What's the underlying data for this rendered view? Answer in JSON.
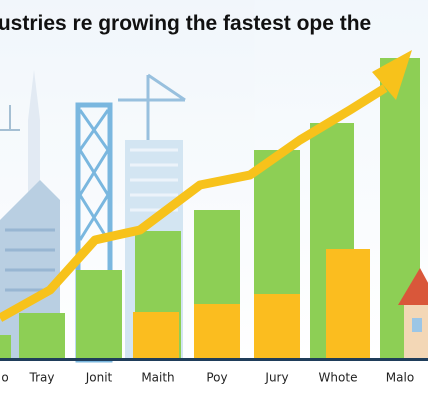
{
  "chart_data": {
    "type": "bar",
    "title": "lustries re growing the fastest ope the",
    "categories": [
      "o",
      "Tray",
      "Jonit",
      "Maith",
      "Poy",
      "Jury",
      "Whote",
      "Malo"
    ],
    "series": [
      {
        "color": "#8dcf55",
        "values": [
          23,
          45,
          88,
          127,
          148,
          208,
          235,
          300
        ]
      },
      {
        "color": "#fbbd1f",
        "values": [
          null,
          null,
          null,
          46,
          54,
          64,
          109,
          null
        ]
      }
    ]
  }
}
